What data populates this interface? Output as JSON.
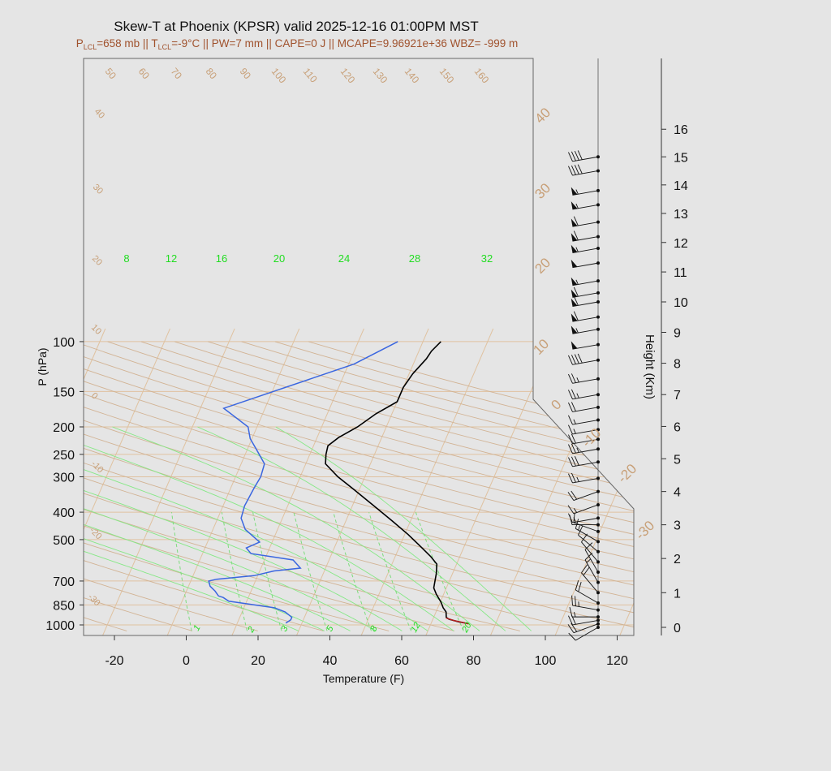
{
  "chart_data": {
    "type": "skew-t",
    "title": "Skew-T at Phoenix (KPSR) valid 2025-12-16 01:00PM MST",
    "subtitle": {
      "lcl_p_prefix": "P",
      "lcl_p_sub": "LCL",
      "lcl_p_rest": "=658 mb || T",
      "lcl_t_sub": "LCL",
      "lcl_t_rest": "=-9°C || PW=7 mm || CAPE=0 J || MCAPE=9.96921e+36 WBZ= -999 m"
    },
    "xlabel": "Temperature (F)",
    "ylabel": "P (hPa)",
    "y2label": "Height (Km)",
    "x_ticks": [
      "-20",
      "0",
      "20",
      "40",
      "60",
      "80",
      "100",
      "120"
    ],
    "x_tick_values": [
      -20,
      0,
      20,
      40,
      60,
      80,
      100,
      120
    ],
    "p_ticks": [
      "100",
      "150",
      "200",
      "250",
      "300",
      "400",
      "500",
      "700",
      "850",
      "1000"
    ],
    "p_tick_values": [
      100,
      150,
      200,
      250,
      300,
      400,
      500,
      700,
      850,
      1000
    ],
    "height_ticks": [
      "0",
      "1",
      "2",
      "3",
      "4",
      "5",
      "6",
      "7",
      "8",
      "9",
      "10",
      "11",
      "12",
      "13",
      "14",
      "15",
      "16"
    ],
    "height_tick_values": [
      0,
      1,
      2,
      3,
      4,
      5,
      6,
      7,
      8,
      9,
      10,
      11,
      12,
      13,
      14,
      15,
      16
    ],
    "isotherm_labels_c": [
      "40",
      "30",
      "20",
      "10",
      "0",
      "-10",
      "-20",
      "-30"
    ],
    "isotherm_label_values_c": [
      40,
      30,
      20,
      10,
      0,
      -10,
      -20,
      -30
    ],
    "dry_adiabat_labels": [
      "50",
      "60",
      "70",
      "80",
      "90",
      "100",
      "110",
      "120",
      "130",
      "140",
      "150",
      "160"
    ],
    "dry_adiabat_label_values": [
      50,
      60,
      70,
      80,
      90,
      100,
      110,
      120,
      130,
      140,
      150,
      160
    ],
    "moist_adiabat_labels": [
      "8",
      "12",
      "16",
      "20",
      "24",
      "28",
      "32"
    ],
    "moist_adiabat_label_values": [
      8,
      12,
      16,
      20,
      24,
      28,
      32
    ],
    "mixing_ratio_labels": [
      "1",
      "2",
      "3",
      "5",
      "8",
      "12",
      "20"
    ],
    "mixing_ratio_label_values": [
      1,
      2,
      3,
      5,
      8,
      12,
      20
    ],
    "series": [
      {
        "name": "temperature",
        "color": "#000000",
        "x_unit": "F",
        "points": [
          [
            78.5,
            990
          ],
          [
            75.5,
            975
          ],
          [
            72.5,
            955
          ],
          [
            71.5,
            940
          ],
          [
            70.8,
            900
          ],
          [
            69.5,
            870
          ],
          [
            68.2,
            830
          ],
          [
            66.0,
            780
          ],
          [
            64.5,
            740
          ],
          [
            64.0,
            700
          ],
          [
            63.5,
            660
          ],
          [
            62.5,
            610
          ],
          [
            60.0,
            575
          ],
          [
            56.0,
            530
          ],
          [
            51.0,
            480
          ],
          [
            45.0,
            430
          ],
          [
            38.0,
            380
          ],
          [
            30.0,
            330
          ],
          [
            24.5,
            300
          ],
          [
            19.5,
            270
          ],
          [
            18.5,
            250
          ],
          [
            18.0,
            233
          ],
          [
            20.0,
            218
          ],
          [
            24.0,
            200
          ],
          [
            27.5,
            180
          ],
          [
            32.0,
            163
          ],
          [
            32.0,
            145
          ],
          [
            33.0,
            130
          ],
          [
            35.0,
            115
          ],
          [
            35.5,
            108
          ],
          [
            37.0,
            100
          ]
        ]
      },
      {
        "name": "dewpoint",
        "color": "#3a66e0",
        "x_unit": "F",
        "points": [
          [
            27.5,
            985
          ],
          [
            28.5,
            960
          ],
          [
            28.5,
            940
          ],
          [
            26.0,
            900
          ],
          [
            22.5,
            870
          ],
          [
            9.0,
            825
          ],
          [
            7.0,
            800
          ],
          [
            5.5,
            790
          ],
          [
            4.0,
            760
          ],
          [
            2.0,
            730
          ],
          [
            1.0,
            700
          ],
          [
            3.0,
            690
          ],
          [
            13.0,
            670
          ],
          [
            18.0,
            645
          ],
          [
            25.0,
            630
          ],
          [
            22.0,
            590
          ],
          [
            9.5,
            560
          ],
          [
            7.5,
            535
          ],
          [
            10.5,
            510
          ],
          [
            5.0,
            460
          ],
          [
            2.5,
            420
          ],
          [
            2.0,
            380
          ],
          [
            2.5,
            330
          ],
          [
            3.0,
            300
          ],
          [
            2.5,
            270
          ],
          [
            -1.5,
            240
          ],
          [
            -4.5,
            220
          ],
          [
            -6.5,
            200
          ],
          [
            -15.5,
            172
          ],
          [
            15.5,
            120
          ],
          [
            25.0,
            100
          ]
        ]
      },
      {
        "name": "parcel",
        "color": "#b41e1e",
        "x_unit": "F",
        "points": [
          [
            78.5,
            990
          ],
          [
            74.0,
            965
          ],
          [
            71.5,
            945
          ]
        ]
      }
    ],
    "wind_profile": {
      "x_position_f": 115,
      "levels_km": [
        0.0,
        0.1,
        0.2,
        0.3,
        0.5,
        0.7,
        1.0,
        1.3,
        1.6,
        1.9,
        2.2,
        2.5,
        2.8,
        3.0,
        3.2,
        3.6,
        4.0,
        4.4,
        4.9,
        5.3,
        5.6,
        5.9,
        6.2,
        6.6,
        7.0,
        7.5,
        8.1,
        8.6,
        9.1,
        9.5,
        10.0,
        10.3,
        10.7,
        11.3,
        11.8,
        12.2,
        12.7,
        13.3,
        13.8,
        14.5,
        15.0
      ],
      "speeds_kt": [
        10,
        20,
        20,
        15,
        25,
        20,
        20,
        15,
        10,
        10,
        10,
        15,
        10,
        10,
        15,
        15,
        20,
        25,
        30,
        25,
        20,
        15,
        15,
        20,
        25,
        25,
        40,
        50,
        55,
        60,
        60,
        60,
        55,
        50,
        55,
        60,
        60,
        55,
        55,
        40,
        40
      ],
      "directions_deg": [
        240,
        250,
        260,
        270,
        280,
        300,
        320,
        330,
        330,
        320,
        310,
        300,
        290,
        270,
        260,
        250,
        250,
        260,
        260,
        260,
        260,
        260,
        260,
        260,
        260,
        260,
        260,
        260,
        260,
        260,
        260,
        260,
        260,
        260,
        260,
        260,
        260,
        260,
        260,
        260,
        260
      ]
    }
  },
  "colors": {
    "background": "#e5e5e5",
    "title": "#111111",
    "subtitle": "#a0522d",
    "isotherm": "#e0c2a0",
    "isotherm_label": "#c8a078",
    "adiabat": "#d2b394",
    "moist_adiabat": "#86e886",
    "mixing_ratio": "#7ddc7d",
    "green_label": "#22dd22",
    "wind_barb": "#111111"
  }
}
